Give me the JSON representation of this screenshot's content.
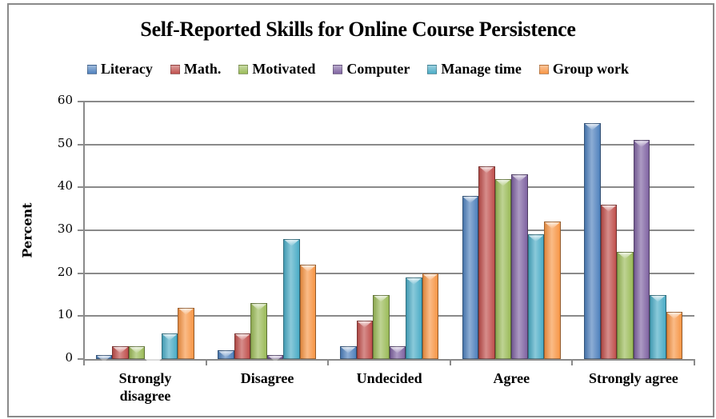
{
  "chart_data": {
    "type": "bar",
    "title": "Self-Reported Skills for Online Course Persistence",
    "xlabel": "",
    "ylabel": "Percent",
    "ylim": [
      0,
      60
    ],
    "yticks": [
      0,
      10,
      20,
      30,
      40,
      50,
      60
    ],
    "grid": true,
    "legend_position": "top",
    "categories": [
      "Strongly disagree",
      "Disagree",
      "Undecided",
      "Agree",
      "Strongly agree"
    ],
    "series": [
      {
        "name": "Literacy",
        "color": "#4f81bd",
        "values": [
          1,
          2,
          3,
          38,
          55
        ]
      },
      {
        "name": "Math.",
        "color": "#c0504d",
        "values": [
          3,
          6,
          9,
          45,
          36
        ]
      },
      {
        "name": "Motivated",
        "color": "#9bbb59",
        "values": [
          3,
          13,
          15,
          42,
          25
        ]
      },
      {
        "name": "Computer",
        "color": "#8064a2",
        "values": [
          0,
          1,
          3,
          43,
          51
        ]
      },
      {
        "name": "Manage time",
        "color": "#4bacc6",
        "values": [
          6,
          28,
          19,
          29,
          15
        ]
      },
      {
        "name": "Group work",
        "color": "#f79646",
        "values": [
          12,
          22,
          20,
          32,
          11
        ]
      }
    ]
  },
  "x_labels": [
    {
      "line1": "Strongly",
      "line2": "disagree"
    },
    {
      "line1": "Disagree",
      "line2": ""
    },
    {
      "line1": "Undecided",
      "line2": ""
    },
    {
      "line1": "Agree",
      "line2": ""
    },
    {
      "line1": "Strongly agree",
      "line2": ""
    }
  ]
}
